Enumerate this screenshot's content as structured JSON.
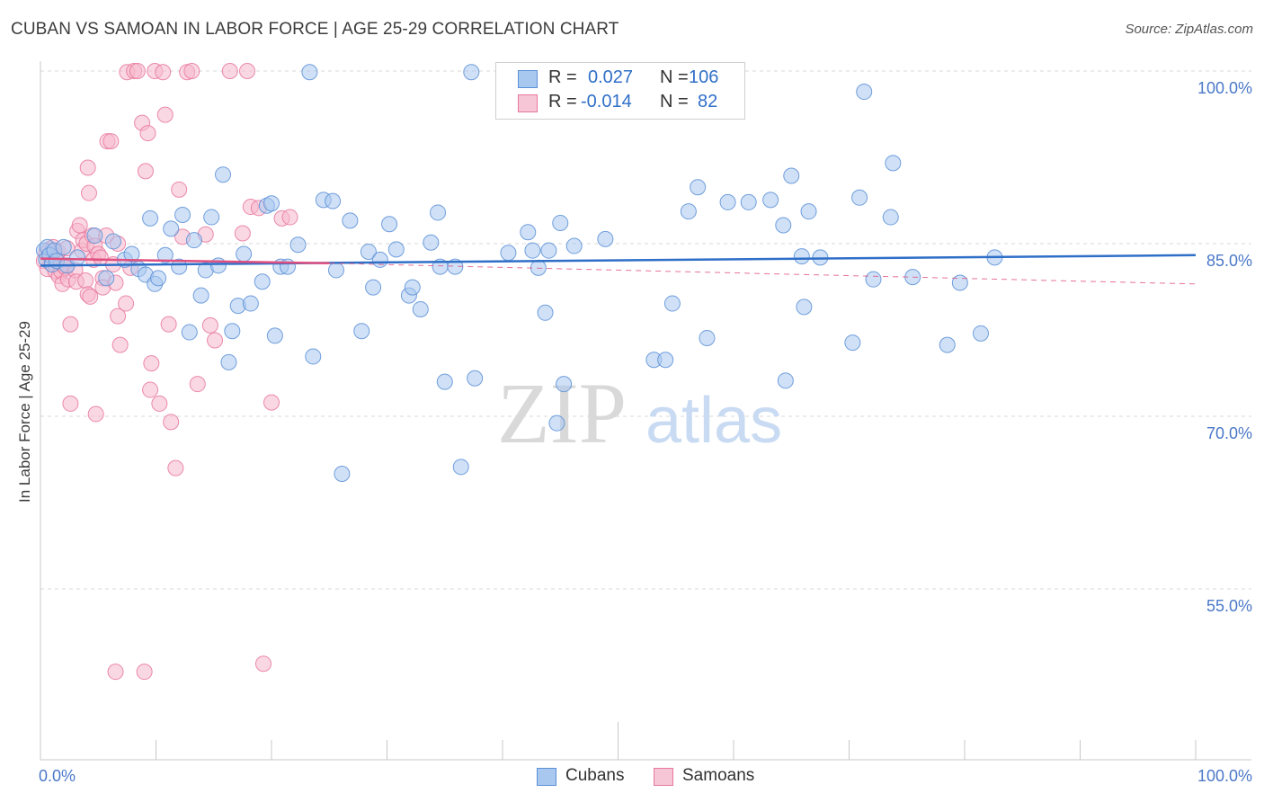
{
  "header": {
    "title": "CUBAN VS SAMOAN IN LABOR FORCE | AGE 25-29 CORRELATION CHART",
    "source": "Source: ZipAtlas.com"
  },
  "legend": {
    "rows": [
      {
        "r_label": "R =",
        "r_value": "0.027",
        "n_label": "N =",
        "n_value": "106"
      },
      {
        "r_label": "R =",
        "r_value": "-0.014",
        "n_label": "N =",
        "n_value": "82"
      }
    ]
  },
  "bottom_legend": {
    "cubans": "Cubans",
    "samoans": "Samoans"
  },
  "watermark": {
    "zip": "ZIP",
    "atlas": "atlas"
  },
  "colors": {
    "cubans_fill": "#a9c8f0",
    "cubans_stroke": "#5a8fd6",
    "cubans_line": "#2f6fc8",
    "samoans_fill": "#f6b8cc",
    "samoans_stroke": "#e8779c",
    "samoans_line": "#e04f7f",
    "axis_text": "#4a78c8",
    "grid": "#d8d8d8"
  },
  "chart_data": {
    "type": "scatter",
    "title": "CUBAN VS SAMOAN IN LABOR FORCE | AGE 25-29 CORRELATION CHART",
    "xlabel": "",
    "ylabel": "In Labor Force | Age 25-29",
    "xlim": [
      0,
      100
    ],
    "ylim": [
      40,
      101.5
    ],
    "x_tick_labels": [
      "0.0%",
      "100.0%"
    ],
    "y_ticks": [
      55,
      70,
      85,
      100
    ],
    "y_tick_labels": [
      "55.0%",
      "70.0%",
      "85.0%",
      "100.0%"
    ],
    "grid": true,
    "legend_position": "top-center",
    "series": [
      {
        "name": "Cubans",
        "r": 0.027,
        "n": 106,
        "trend": {
          "x": [
            0,
            100
          ],
          "y": [
            83.1,
            84.0
          ],
          "style": "solid"
        },
        "points": [
          [
            0.3,
            84.4
          ],
          [
            0.5,
            83.6
          ],
          [
            0.6,
            84.7
          ],
          [
            0.8,
            84.0
          ],
          [
            1.0,
            83.2
          ],
          [
            1.2,
            84.4
          ],
          [
            1.4,
            83.5
          ],
          [
            2.0,
            84.7
          ],
          [
            2.3,
            83.1
          ],
          [
            3.2,
            83.8
          ],
          [
            4.7,
            85.7
          ],
          [
            5.7,
            82.0
          ],
          [
            6.3,
            85.2
          ],
          [
            7.3,
            83.6
          ],
          [
            7.9,
            84.1
          ],
          [
            8.5,
            82.8
          ],
          [
            9.1,
            82.3
          ],
          [
            9.5,
            87.2
          ],
          [
            9.9,
            81.5
          ],
          [
            10.2,
            82.0
          ],
          [
            10.8,
            84.0
          ],
          [
            11.3,
            86.3
          ],
          [
            12.0,
            83.0
          ],
          [
            12.3,
            87.5
          ],
          [
            12.9,
            77.3
          ],
          [
            13.3,
            85.3
          ],
          [
            13.9,
            80.5
          ],
          [
            14.3,
            82.7
          ],
          [
            14.8,
            87.3
          ],
          [
            15.4,
            83.1
          ],
          [
            15.8,
            91.0
          ],
          [
            16.3,
            74.7
          ],
          [
            16.6,
            77.4
          ],
          [
            17.1,
            79.6
          ],
          [
            17.6,
            84.1
          ],
          [
            18.2,
            79.8
          ],
          [
            19.2,
            81.7
          ],
          [
            19.6,
            88.3
          ],
          [
            20.0,
            88.5
          ],
          [
            20.3,
            77.0
          ],
          [
            20.8,
            83.0
          ],
          [
            21.4,
            83.0
          ],
          [
            22.3,
            84.9
          ],
          [
            23.3,
            99.9
          ],
          [
            23.6,
            75.2
          ],
          [
            24.5,
            88.8
          ],
          [
            25.3,
            88.7
          ],
          [
            25.6,
            82.7
          ],
          [
            26.1,
            65.0
          ],
          [
            26.8,
            87.0
          ],
          [
            27.8,
            77.4
          ],
          [
            28.4,
            84.3
          ],
          [
            28.8,
            81.2
          ],
          [
            29.4,
            83.6
          ],
          [
            30.2,
            86.7
          ],
          [
            30.8,
            84.5
          ],
          [
            31.9,
            80.5
          ],
          [
            32.2,
            81.2
          ],
          [
            32.9,
            79.3
          ],
          [
            33.8,
            85.1
          ],
          [
            34.4,
            87.7
          ],
          [
            34.6,
            83.0
          ],
          [
            35.0,
            73.0
          ],
          [
            35.9,
            83.0
          ],
          [
            36.4,
            65.6
          ],
          [
            37.3,
            99.9
          ],
          [
            37.6,
            73.3
          ],
          [
            40.5,
            84.2
          ],
          [
            42.2,
            86.0
          ],
          [
            42.6,
            84.4
          ],
          [
            43.1,
            82.9
          ],
          [
            43.7,
            79.0
          ],
          [
            44.0,
            84.4
          ],
          [
            44.7,
            69.4
          ],
          [
            45.0,
            86.8
          ],
          [
            45.3,
            72.8
          ],
          [
            46.2,
            84.8
          ],
          [
            48.9,
            85.4
          ],
          [
            53.1,
            74.9
          ],
          [
            54.1,
            74.9
          ],
          [
            54.7,
            79.8
          ],
          [
            56.1,
            87.8
          ],
          [
            56.9,
            89.9
          ],
          [
            57.7,
            76.8
          ],
          [
            59.5,
            88.6
          ],
          [
            61.3,
            88.6
          ],
          [
            63.2,
            88.8
          ],
          [
            64.3,
            86.6
          ],
          [
            64.5,
            73.1
          ],
          [
            65.0,
            90.9
          ],
          [
            65.9,
            83.9
          ],
          [
            66.1,
            79.5
          ],
          [
            66.5,
            87.8
          ],
          [
            67.5,
            83.8
          ],
          [
            70.3,
            76.4
          ],
          [
            70.9,
            89.0
          ],
          [
            71.3,
            98.2
          ],
          [
            72.1,
            81.9
          ],
          [
            73.6,
            87.3
          ],
          [
            73.8,
            92.0
          ],
          [
            75.5,
            82.1
          ],
          [
            78.5,
            76.2
          ],
          [
            79.6,
            81.6
          ],
          [
            81.4,
            77.2
          ],
          [
            82.6,
            83.8
          ]
        ]
      },
      {
        "name": "Samoans",
        "r": -0.014,
        "n": 82,
        "trend_solid": {
          "x": [
            0,
            25
          ],
          "y": [
            83.7,
            83.3
          ],
          "style": "solid"
        },
        "trend_dashed": {
          "x": [
            25,
            100
          ],
          "y": [
            83.3,
            81.5
          ],
          "style": "dashed"
        },
        "points": [
          [
            0.3,
            83.5
          ],
          [
            0.5,
            84.2
          ],
          [
            0.6,
            82.8
          ],
          [
            0.8,
            84.5
          ],
          [
            1.0,
            83.2
          ],
          [
            1.1,
            84.7
          ],
          [
            1.3,
            82.6
          ],
          [
            1.4,
            83.9
          ],
          [
            1.5,
            84.3
          ],
          [
            1.6,
            82.2
          ],
          [
            1.8,
            82.6
          ],
          [
            1.9,
            81.5
          ],
          [
            2.0,
            83.1
          ],
          [
            2.2,
            82.9
          ],
          [
            2.3,
            84.6
          ],
          [
            2.4,
            81.9
          ],
          [
            2.6,
            78.0
          ],
          [
            2.6,
            71.1
          ],
          [
            3.0,
            82.7
          ],
          [
            3.1,
            81.7
          ],
          [
            3.2,
            86.1
          ],
          [
            3.4,
            86.6
          ],
          [
            3.6,
            84.4
          ],
          [
            3.7,
            85.3
          ],
          [
            3.9,
            81.8
          ],
          [
            4.0,
            85.0
          ],
          [
            4.1,
            80.6
          ],
          [
            4.1,
            91.6
          ],
          [
            4.2,
            89.4
          ],
          [
            4.3,
            80.4
          ],
          [
            4.5,
            85.7
          ],
          [
            4.6,
            83.6
          ],
          [
            4.7,
            84.8
          ],
          [
            4.8,
            70.2
          ],
          [
            5.0,
            84.1
          ],
          [
            5.2,
            83.8
          ],
          [
            5.4,
            82.0
          ],
          [
            5.4,
            81.2
          ],
          [
            5.7,
            85.7
          ],
          [
            5.8,
            93.9
          ],
          [
            6.1,
            93.9
          ],
          [
            6.3,
            83.2
          ],
          [
            6.5,
            81.6
          ],
          [
            6.7,
            85.0
          ],
          [
            6.7,
            78.7
          ],
          [
            6.9,
            76.2
          ],
          [
            7.4,
            79.8
          ],
          [
            7.5,
            99.9
          ],
          [
            7.8,
            82.9
          ],
          [
            8.1,
            100.0
          ],
          [
            8.4,
            100.0
          ],
          [
            8.8,
            95.5
          ],
          [
            9.1,
            91.3
          ],
          [
            9.3,
            94.6
          ],
          [
            9.5,
            72.3
          ],
          [
            9.6,
            74.6
          ],
          [
            9.9,
            100.0
          ],
          [
            10.3,
            71.1
          ],
          [
            10.6,
            99.9
          ],
          [
            10.8,
            96.2
          ],
          [
            11.1,
            78.0
          ],
          [
            11.3,
            69.5
          ],
          [
            11.7,
            65.5
          ],
          [
            12.0,
            89.7
          ],
          [
            12.3,
            85.6
          ],
          [
            12.7,
            99.9
          ],
          [
            13.1,
            100.0
          ],
          [
            13.6,
            72.8
          ],
          [
            14.3,
            85.8
          ],
          [
            14.7,
            77.9
          ],
          [
            15.1,
            76.6
          ],
          [
            16.4,
            100.0
          ],
          [
            17.5,
            85.9
          ],
          [
            17.9,
            100.0
          ],
          [
            18.2,
            88.2
          ],
          [
            18.9,
            88.1
          ],
          [
            19.3,
            48.5
          ],
          [
            20.0,
            71.2
          ],
          [
            20.9,
            87.2
          ],
          [
            21.6,
            87.3
          ],
          [
            9.0,
            47.8
          ],
          [
            6.5,
            47.8
          ]
        ]
      }
    ]
  }
}
